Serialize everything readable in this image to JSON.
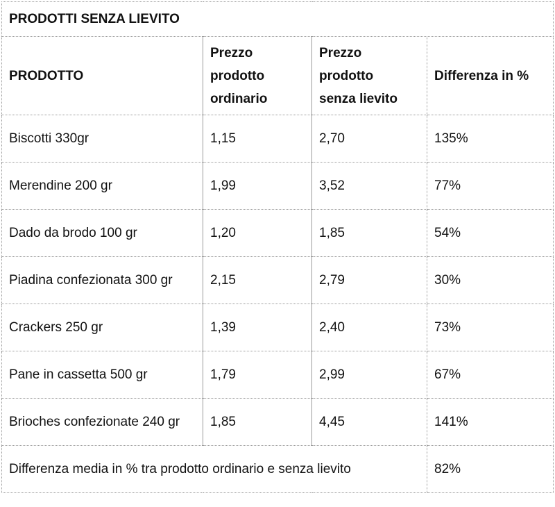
{
  "table": {
    "title": "PRODOTTI SENZA LIEVITO",
    "headers": {
      "product": "PRODOTTO",
      "ordinary_price_lines": [
        "Prezzo",
        "prodotto",
        "ordinario"
      ],
      "yeastfree_price_lines": [
        "Prezzo",
        "prodotto",
        "senza lievito"
      ],
      "difference": "Differenza in %"
    },
    "rows": [
      {
        "product": "Biscotti 330gr",
        "ordinary": "1,15",
        "yeastfree": "2,70",
        "diff": "135%"
      },
      {
        "product": "Merendine 200 gr",
        "ordinary": "1,99",
        "yeastfree": "3,52",
        "diff": "77%"
      },
      {
        "product": "Dado da brodo 100 gr",
        "ordinary": "1,20",
        "yeastfree": "1,85",
        "diff": "54%"
      },
      {
        "product": "Piadina confezionata 300 gr",
        "ordinary": "2,15",
        "yeastfree": "2,79",
        "diff": "30%"
      },
      {
        "product": "Crackers 250 gr",
        "ordinary": "1,39",
        "yeastfree": "2,40",
        "diff": "73%"
      },
      {
        "product": "Pane in cassetta 500 gr",
        "ordinary": "1,79",
        "yeastfree": "2,99",
        "diff": "67%"
      },
      {
        "product": "Brioches confezionate 240 gr",
        "ordinary": "1,85",
        "yeastfree": "4,45",
        "diff": "141%"
      }
    ],
    "footer": {
      "label": "Differenza media in % tra prodotto ordinario e senza lievito",
      "value": "82%"
    }
  }
}
